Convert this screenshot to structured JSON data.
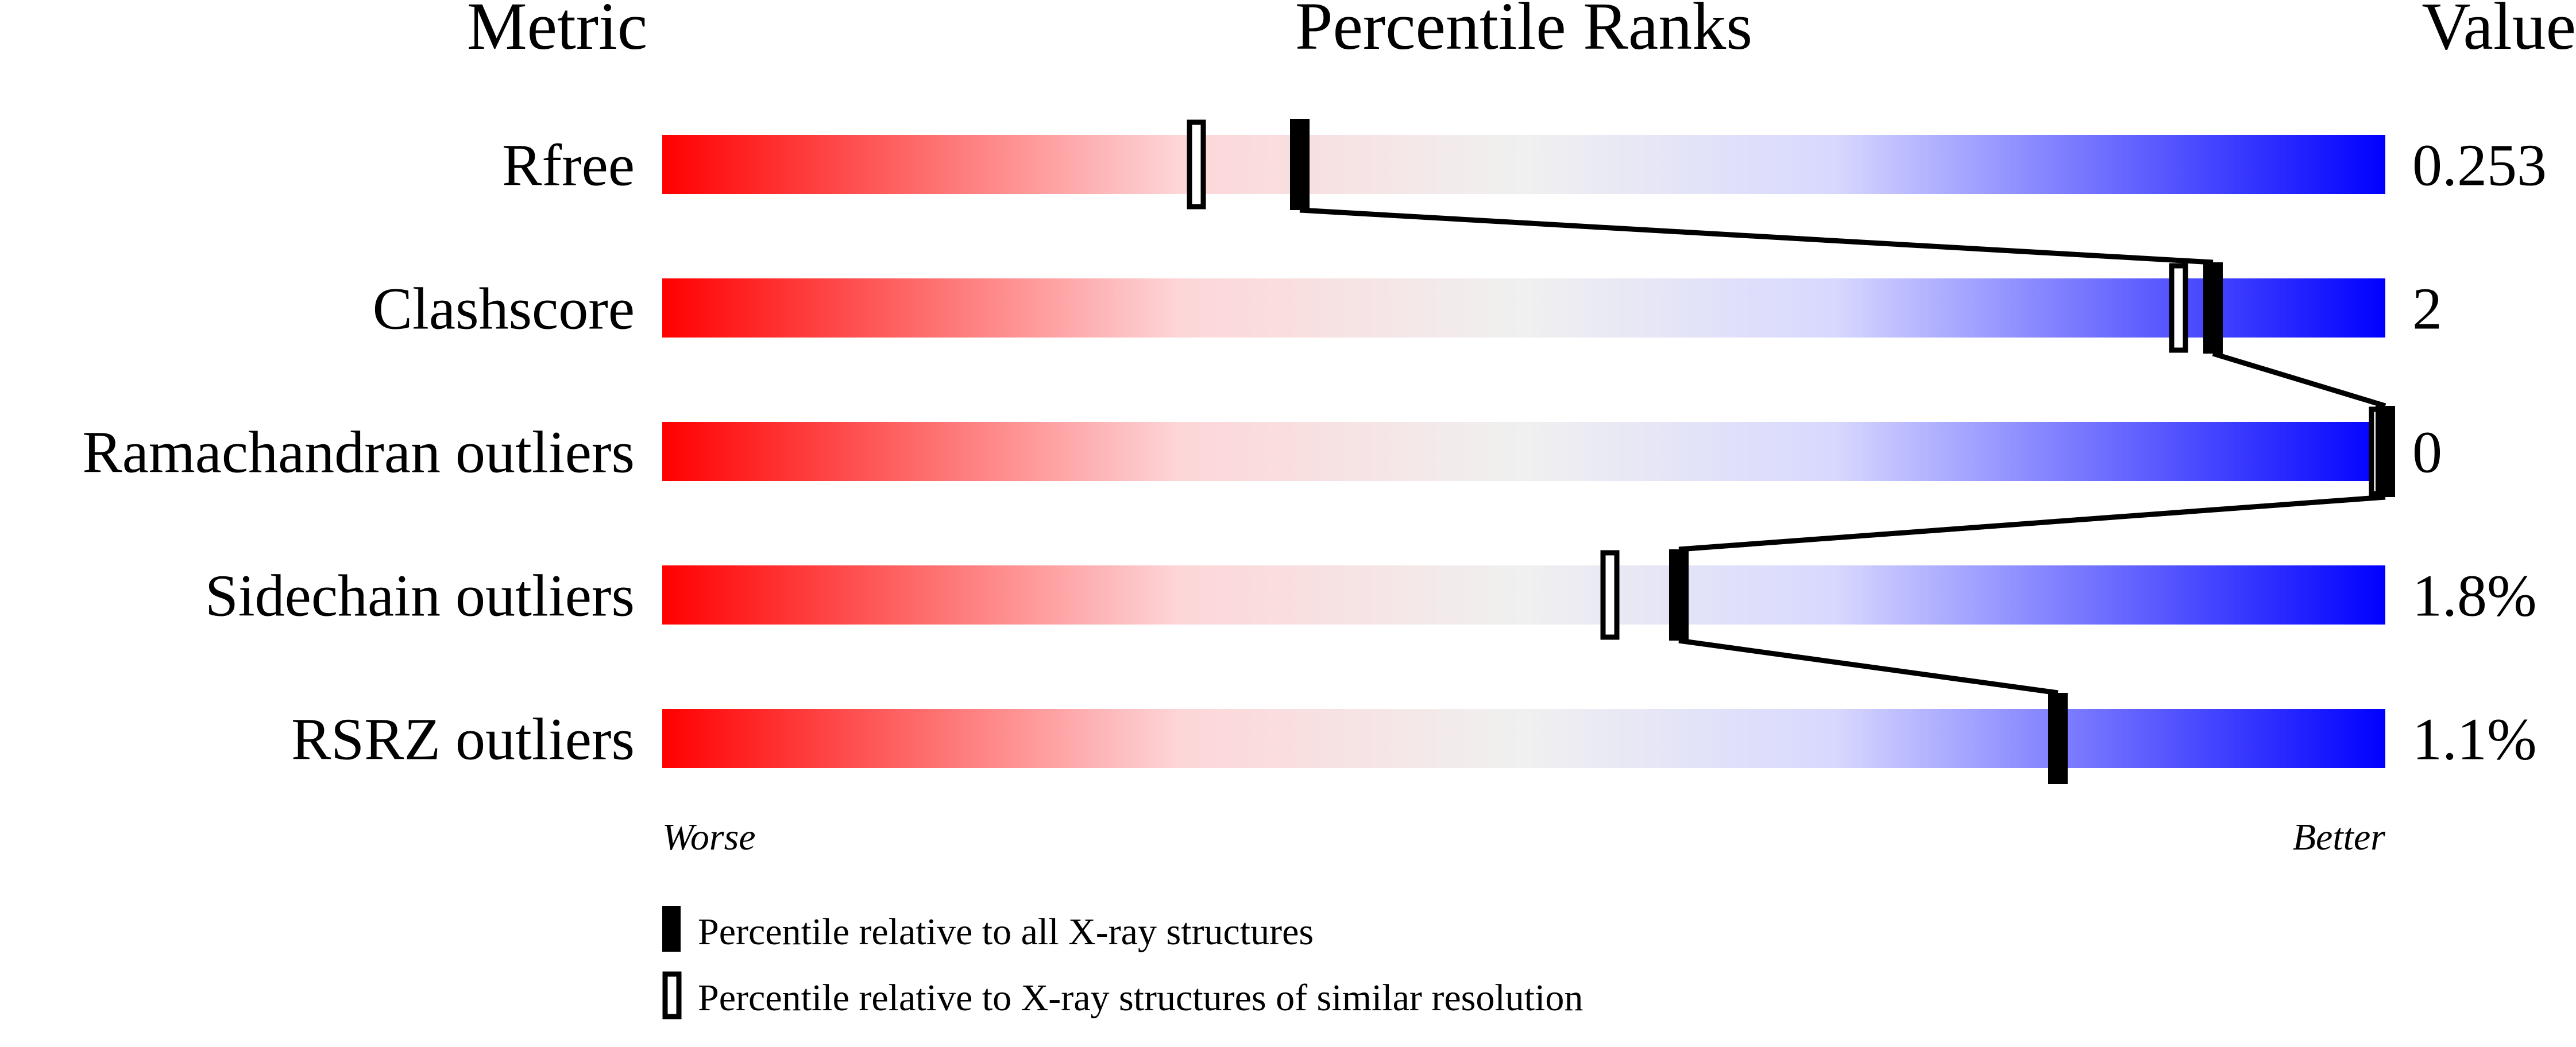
{
  "chart_data": {
    "type": "percentile-bar",
    "headers": {
      "metric": "Metric",
      "ranks": "Percentile Ranks",
      "value": "Value"
    },
    "xlim": [
      0,
      100
    ],
    "axis_labels": {
      "left": "Worse",
      "right": "Better"
    },
    "gradient_colors": [
      "#ff0000",
      "#fdd6d8",
      "#f0f0f0",
      "#d8d8ff",
      "#0000ff"
    ],
    "metrics": [
      {
        "name": "Rfree",
        "value": "0.253",
        "percentile_all": 37,
        "percentile_similar": 31
      },
      {
        "name": "Clashscore",
        "value": "2",
        "percentile_all": 90,
        "percentile_similar": 88
      },
      {
        "name": "Ramachandran outliers",
        "value": "0",
        "percentile_all": 100,
        "percentile_similar": 100
      },
      {
        "name": "Sidechain outliers",
        "value": "1.8%",
        "percentile_all": 59,
        "percentile_similar": 55
      },
      {
        "name": "RSRZ outliers",
        "value": "1.1%",
        "percentile_all": 81,
        "percentile_similar": 81
      }
    ],
    "legend": [
      {
        "marker": "filled",
        "label": "Percentile relative to all X-ray structures"
      },
      {
        "marker": "open",
        "label": "Percentile relative to X-ray structures of similar resolution"
      }
    ]
  }
}
